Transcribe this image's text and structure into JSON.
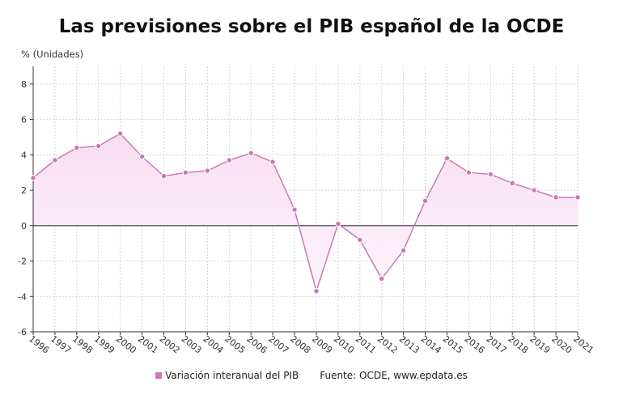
{
  "title": "Las previsiones sobre el PIB español de la OCDE",
  "unit_label": "% (Unidades)",
  "colors": {
    "line": "#c979b6",
    "marker": "#c979b6",
    "fill_top": "#f7dcf0",
    "fill_bottom": "#fdf3fa",
    "grid": "#c8c8c8",
    "zero_line": "#333333",
    "axis": "#333333"
  },
  "legend": {
    "series_label": "Variación interanual del PIB",
    "source_label": "Fuente: OCDE, www.epdata.es"
  },
  "chart_data": {
    "type": "area",
    "title": "Las previsiones sobre el PIB español de la OCDE",
    "xlabel": "",
    "ylabel": "% (Unidades)",
    "ylim": [
      -6,
      9
    ],
    "yticks": [
      -6,
      -4,
      -2,
      0,
      2,
      4,
      6,
      8
    ],
    "grid": true,
    "legend_position": "bottom",
    "categories": [
      "1996",
      "1997",
      "1998",
      "1999",
      "2000",
      "2001",
      "2002",
      "2003",
      "2004",
      "2005",
      "2006",
      "2007",
      "2008",
      "2009",
      "2010",
      "2011",
      "2012",
      "2013",
      "2014",
      "2015",
      "2016",
      "2017",
      "2018",
      "2019",
      "2020",
      "2021"
    ],
    "series": [
      {
        "name": "Variación interanual del PIB",
        "values": [
          2.7,
          3.7,
          4.4,
          4.5,
          5.2,
          3.9,
          2.8,
          3.0,
          3.1,
          3.7,
          4.1,
          3.6,
          0.9,
          -3.7,
          0.1,
          -0.8,
          -3.0,
          -1.4,
          1.4,
          3.8,
          3.0,
          2.9,
          2.4,
          2.0,
          1.6,
          1.6
        ]
      }
    ]
  }
}
